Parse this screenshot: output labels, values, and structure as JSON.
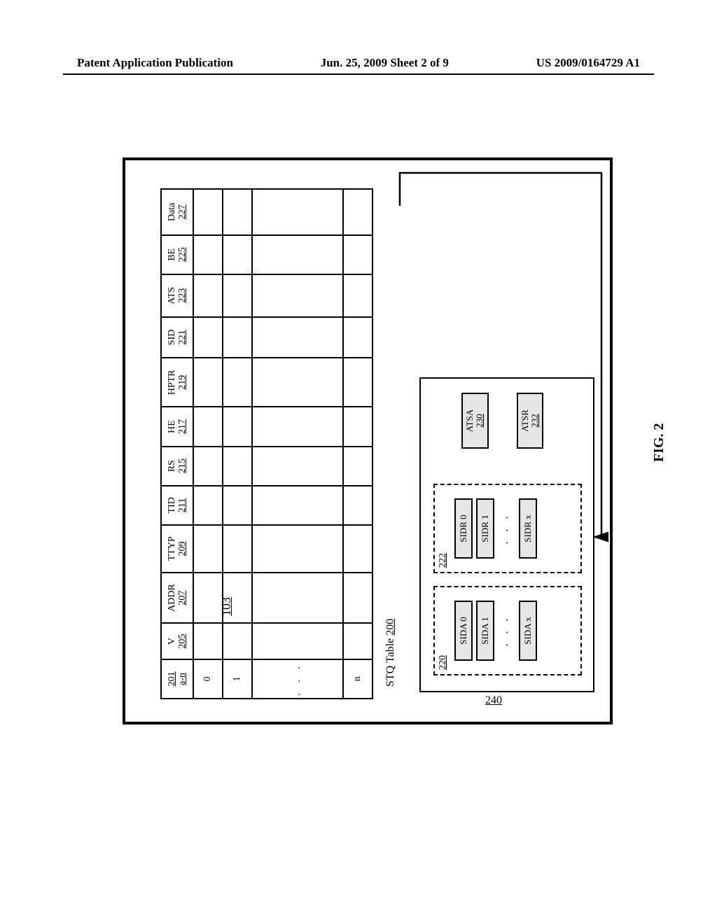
{
  "header": {
    "left": "Patent Application Publication",
    "mid": "Jun. 25, 2009  Sheet 2 of 9",
    "right": "US 2009/0164729 A1"
  },
  "outer_ref": "103",
  "stq_title_text": "STQ Table",
  "stq_title_ref": "200",
  "fig_label": "FIG. 2",
  "util_ref": "240",
  "columns": [
    {
      "key": "idx",
      "name": "201",
      "sub": "a-n",
      "cls": "w-idx"
    },
    {
      "key": "v",
      "name": "V",
      "sub": "205",
      "cls": "w-v"
    },
    {
      "key": "addr",
      "name": "ADDR",
      "sub": "207",
      "cls": "w-addr"
    },
    {
      "key": "ttyp",
      "name": "TTYP",
      "sub": "209",
      "cls": "w-ttyp"
    },
    {
      "key": "tid",
      "name": "TID",
      "sub": "211",
      "cls": "w-tid"
    },
    {
      "key": "rs",
      "name": "RS",
      "sub": "215",
      "cls": "w-rs"
    },
    {
      "key": "he",
      "name": "HE",
      "sub": "217",
      "cls": "w-he"
    },
    {
      "key": "hptr",
      "name": "HPTR",
      "sub": "219",
      "cls": "w-hptr"
    },
    {
      "key": "sid",
      "name": "SID",
      "sub": "221",
      "cls": "w-sid"
    },
    {
      "key": "ats",
      "name": "ATS",
      "sub": "223",
      "cls": "w-ats"
    },
    {
      "key": "be",
      "name": "BE",
      "sub": "225",
      "cls": "w-be"
    },
    {
      "key": "data",
      "name": "Data",
      "sub": "227",
      "cls": "w-data"
    }
  ],
  "row_indices": [
    "0",
    "1",
    ". . .",
    "n"
  ],
  "sida_ref": "220",
  "sidr_ref": "222",
  "sida_items": [
    "SIDA 0",
    "SIDA 1",
    "SIDA x"
  ],
  "sidr_items": [
    "SIDR 0",
    "SIDR 1",
    "SIDR x"
  ],
  "atsa": {
    "label": "ATSA",
    "ref": "230"
  },
  "atsr": {
    "label": "ATSR",
    "ref": "232"
  },
  "colors": {
    "border": "#000000",
    "pill_bg": "#e6e6e6",
    "page_bg": "#ffffff"
  }
}
